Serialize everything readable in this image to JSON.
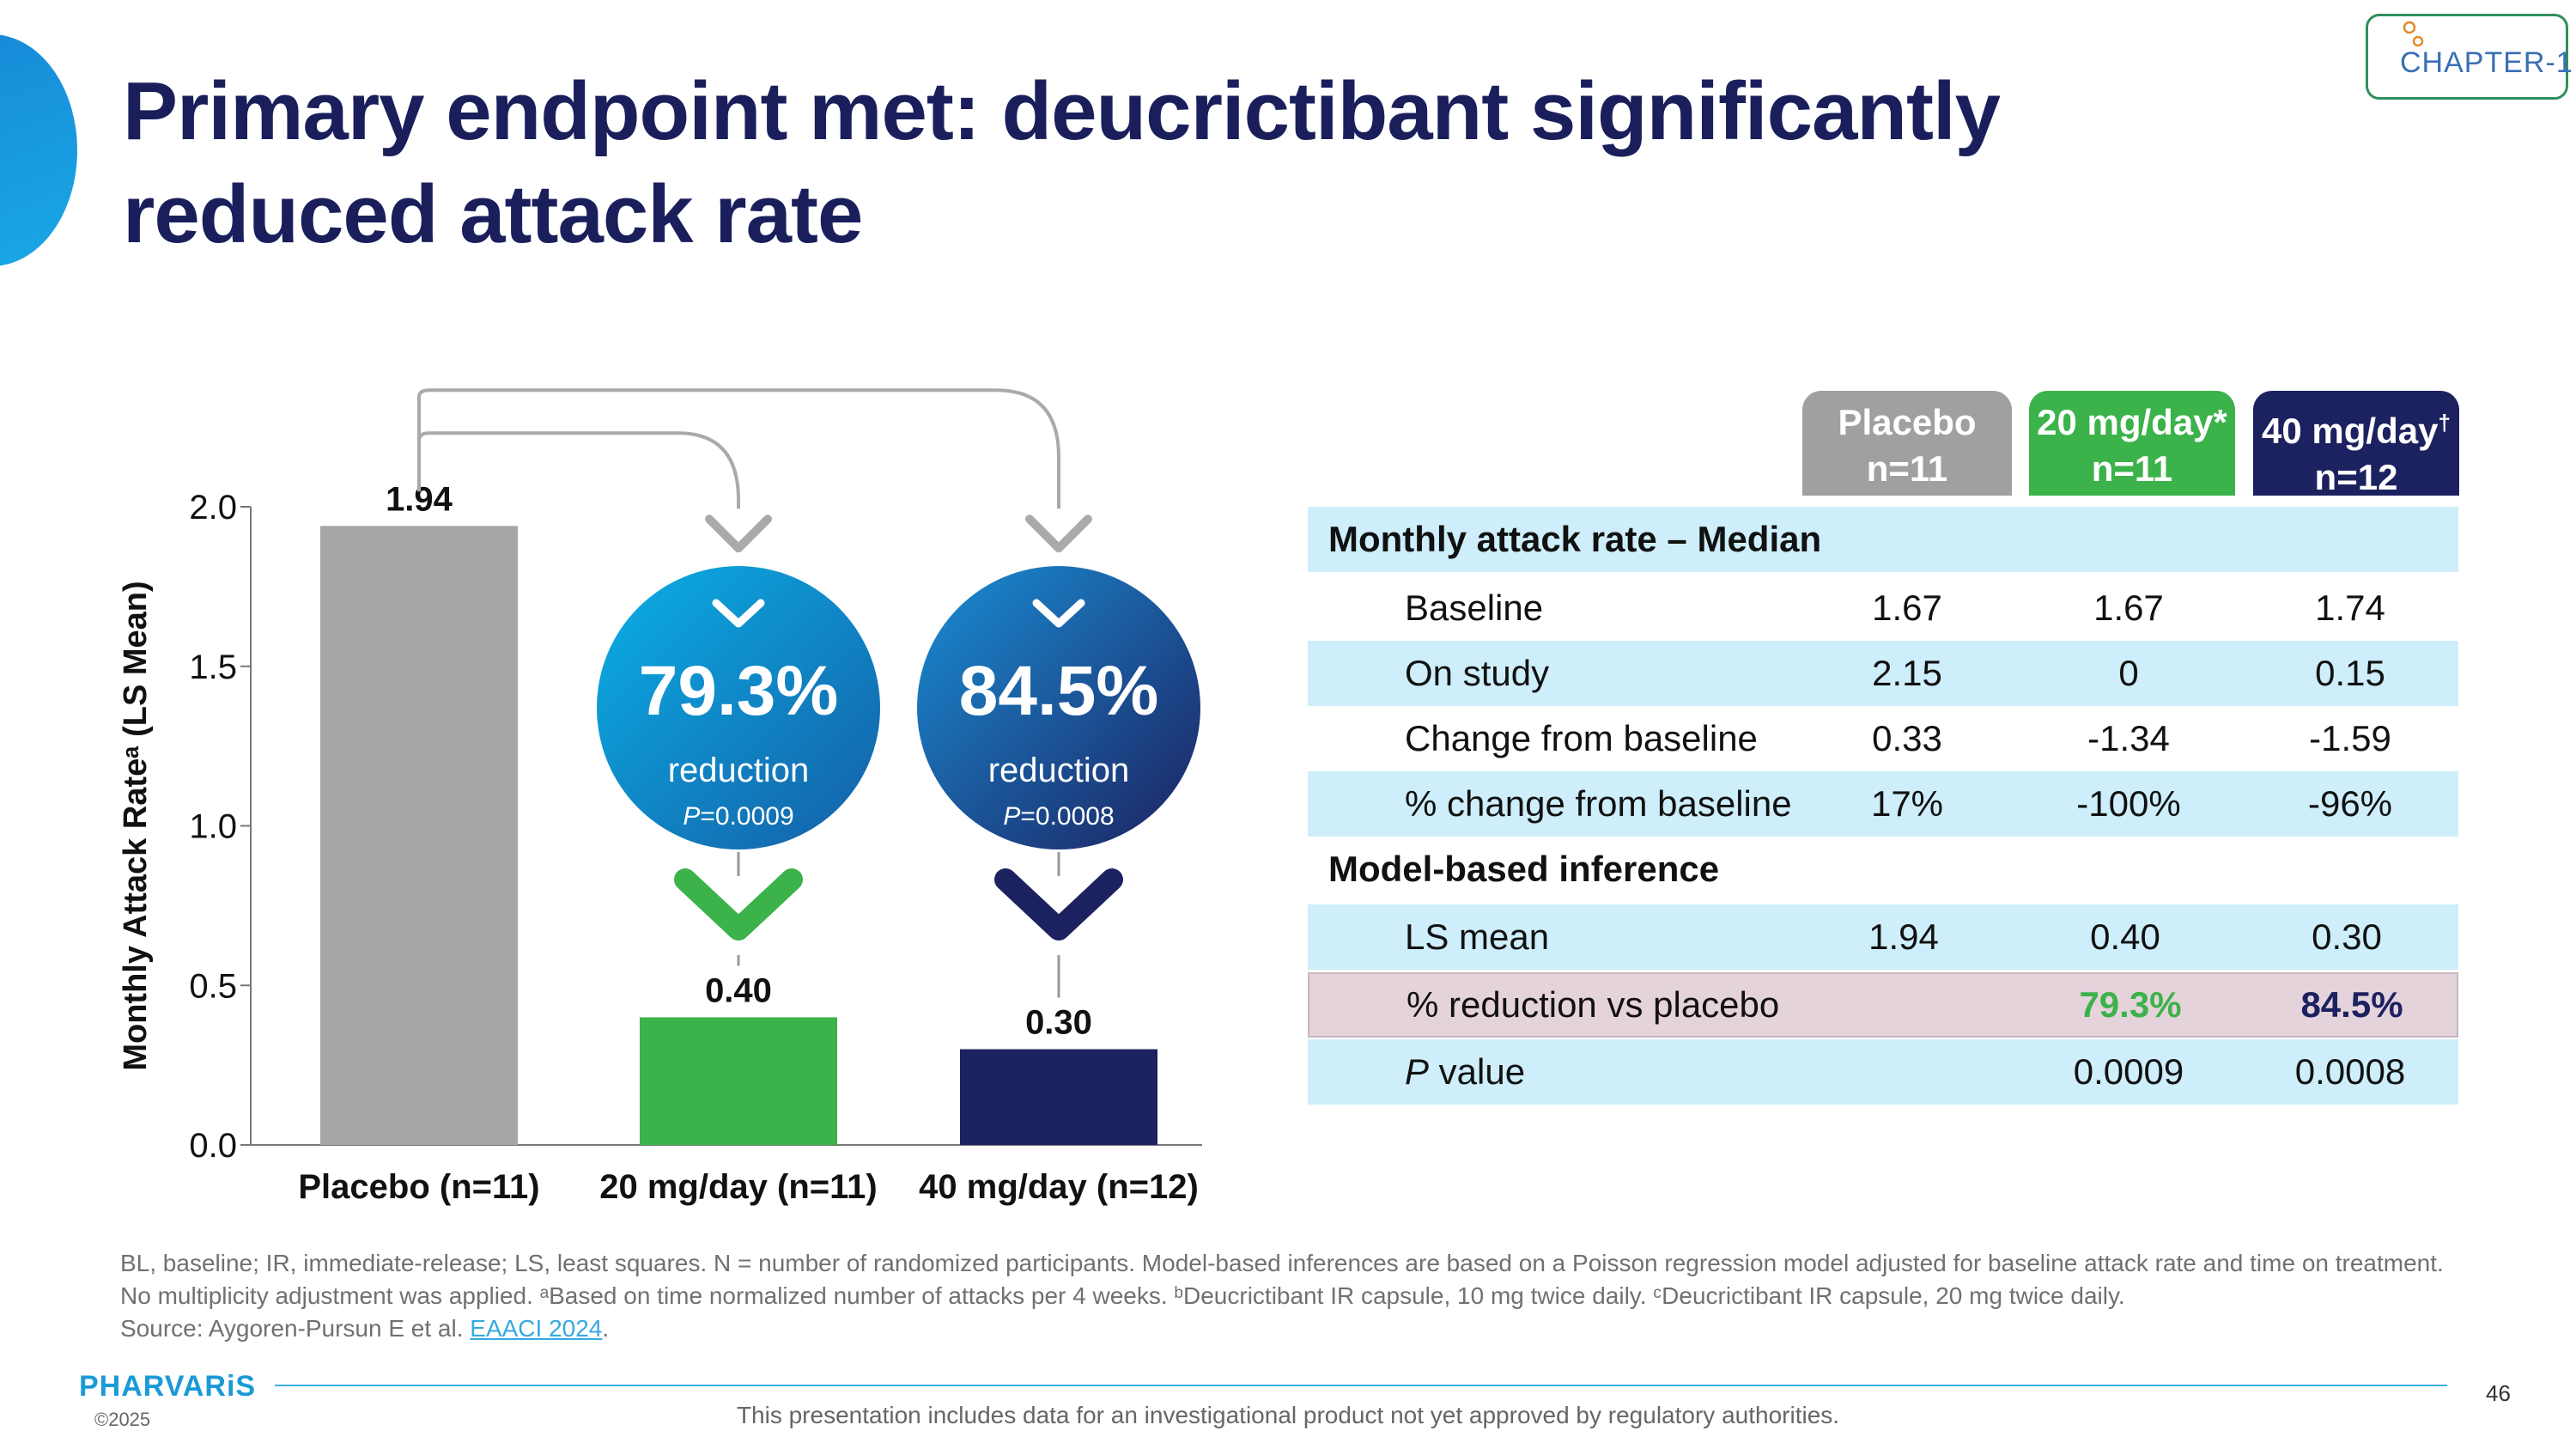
{
  "title": "Primary endpoint met: deucrictibant significantly reduced attack rate",
  "logo": {
    "text": "CHAPTER-1"
  },
  "colors": {
    "placebo": "#a7a7a7",
    "dose20": "#3bb24a",
    "dose40": "#1c2160",
    "title": "#1a1f5c",
    "rowBlue": "#cdeefa",
    "rowPink": "#e5d3db"
  },
  "chart_data": {
    "type": "bar",
    "title": "",
    "categories": [
      "Placebo (n=11)",
      "20 mg/day (n=11)",
      "40 mg/day (n=12)"
    ],
    "values": [
      1.94,
      0.4,
      0.3
    ],
    "value_labels": [
      "1.94",
      "0.40",
      "0.30"
    ],
    "ylabel": "Monthly Attack Rateᵃ (LS Mean)",
    "xlabel": "",
    "ylim": [
      0,
      2.0
    ],
    "yticks": [
      "0.0",
      "0.5",
      "1.0",
      "1.5",
      "2.0"
    ],
    "annotations": [
      {
        "target": "20 mg/day (n=11)",
        "percent": "79.3%",
        "text": "reduction",
        "p_label": "P",
        "p_value": "=0.0009"
      },
      {
        "target": "40 mg/day (n=12)",
        "percent": "84.5%",
        "text": "reduction",
        "p_label": "P",
        "p_value": "=0.0008"
      }
    ]
  },
  "table": {
    "columns": [
      {
        "line1": "Placebo",
        "line2": "n=11",
        "sup": ""
      },
      {
        "line1": "20 mg/day*",
        "line2": "n=11",
        "sup": ""
      },
      {
        "line1": "40 mg/day",
        "line2": "n=12",
        "sup": "†"
      }
    ],
    "section1": "Monthly attack rate – Median",
    "section2": "Model-based inference",
    "rows1": [
      {
        "label": "Baseline",
        "values": [
          "1.67",
          "1.67",
          "1.74"
        ]
      },
      {
        "label": "On study",
        "values": [
          "2.15",
          "0",
          "0.15"
        ]
      },
      {
        "label": "Change from baseline",
        "values": [
          "0.33",
          "-1.34",
          "-1.59"
        ]
      },
      {
        "label": "% change from baseline",
        "values": [
          "17%",
          "-100%",
          "-96%"
        ]
      }
    ],
    "ls_mean": {
      "label": "LS mean",
      "values": [
        "1.94",
        "0.40",
        "0.30"
      ]
    },
    "reduction": {
      "label": "% reduction vs placebo",
      "values": [
        "",
        "79.3%",
        "84.5%"
      ]
    },
    "pvalue": {
      "label_italic": "P",
      "label_rest": " value",
      "values": [
        "",
        "0.0009",
        "0.0008"
      ]
    }
  },
  "footnote": {
    "line1": "BL, baseline; IR, immediate-release; LS, least squares. N = number of randomized participants. Model-based inferences are based on a Poisson regression model adjusted for baseline attack rate and time on treatment.",
    "line2": "No multiplicity adjustment was applied. ᵃBased on time normalized number of attacks per 4 weeks. ᵇDeucrictibant IR capsule, 10 mg twice daily. ᶜDeucrictibant IR capsule, 20 mg twice daily.",
    "source_prefix": "Source: Aygoren-Pursun E et al. ",
    "source_link": "EAACI 2024",
    "source_suffix": "."
  },
  "brand": "PHARVARiS",
  "copyright": "©2025",
  "disclaimer": "This presentation includes data for an investigational product not yet approved by regulatory authorities.",
  "page_number": "46"
}
